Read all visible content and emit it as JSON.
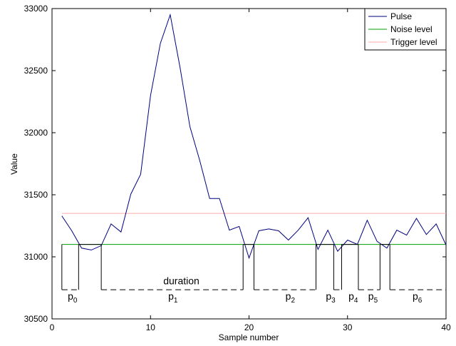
{
  "chart_data": {
    "type": "line",
    "xlabel": "Sample number",
    "ylabel": "Value",
    "xlim": [
      0,
      40
    ],
    "ylim": [
      30500,
      33000
    ],
    "xticks": [
      0,
      10,
      20,
      30,
      40
    ],
    "yticks": [
      30500,
      31000,
      31500,
      32000,
      32500,
      33000
    ],
    "grid": false,
    "legend_position": "top-right",
    "series": [
      {
        "name": "Pulse",
        "color": "#00007f",
        "x": [
          1,
          2,
          3,
          4,
          5,
          6,
          7,
          8,
          9,
          10,
          11,
          12,
          13,
          14,
          15,
          16,
          17,
          18,
          19,
          20,
          21,
          22,
          23,
          24,
          25,
          26,
          27,
          28,
          29,
          30,
          31,
          32,
          33,
          34,
          35,
          36,
          37,
          38,
          39,
          40
        ],
        "y": [
          31330,
          31210,
          31070,
          31055,
          31090,
          31265,
          31200,
          31505,
          31665,
          32300,
          32720,
          32950,
          32525,
          32050,
          31775,
          31470,
          31470,
          31215,
          31245,
          30990,
          31210,
          31225,
          31210,
          31135,
          31215,
          31315,
          31060,
          31215,
          31045,
          31135,
          31100,
          31295,
          31125,
          31070,
          31215,
          31175,
          31310,
          31180,
          31265,
          31095
        ]
      },
      {
        "name": "Noise level",
        "color": "#00a000",
        "x": [
          1,
          40
        ],
        "y": [
          31100,
          31100
        ]
      },
      {
        "name": "Trigger level",
        "color": "#ffaaaa",
        "x": [
          1,
          40
        ],
        "y": [
          31350,
          31350
        ]
      }
    ],
    "pulse_train": {
      "color": "#000000",
      "high": 31100,
      "low": 30735,
      "low_segments": [
        [
          1,
          2.7
        ],
        [
          5,
          19.4
        ],
        [
          20.5,
          26.8
        ],
        [
          28.6,
          29.4
        ],
        [
          31.1,
          33.3
        ],
        [
          34.3,
          40
        ]
      ],
      "high_segments": [
        [
          2.7,
          5
        ],
        [
          19.4,
          20.5
        ],
        [
          26.8,
          28.6
        ],
        [
          29.4,
          31.1
        ],
        [
          33.3,
          34.3
        ]
      ]
    },
    "annotations": [
      {
        "text": "duration",
        "x": 11.3,
        "y": 30780
      },
      {
        "text": "p",
        "sub": "0",
        "x": 1.6,
        "y": 30655
      },
      {
        "text": "p",
        "sub": "1",
        "x": 11.8,
        "y": 30655
      },
      {
        "text": "p",
        "sub": "2",
        "x": 23.7,
        "y": 30655
      },
      {
        "text": "p",
        "sub": "3",
        "x": 27.8,
        "y": 30655
      },
      {
        "text": "p",
        "sub": "4",
        "x": 30.1,
        "y": 30655
      },
      {
        "text": "p",
        "sub": "5",
        "x": 32.1,
        "y": 30655
      },
      {
        "text": "p",
        "sub": "6",
        "x": 36.6,
        "y": 30655
      }
    ]
  }
}
